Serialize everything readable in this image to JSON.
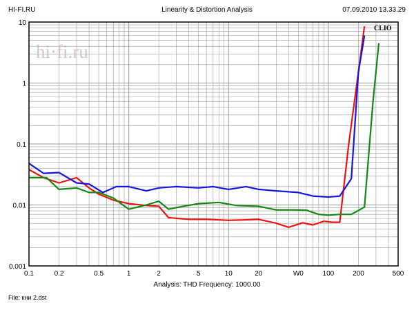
{
  "header": {
    "left": "HI-FI.RU",
    "center": "Linearity & Distortion Analysis",
    "right": "07.09.2010 13.33.29"
  },
  "watermark": "hi·fi.ru",
  "brand": "CLIO",
  "captions": {
    "analysis": "Analysis: THD   Frequency: 1000.00",
    "file": "File: кни 2.dst"
  },
  "colors": {
    "red": "#ee1111",
    "blue": "#1414e0",
    "green": "#118811",
    "grid": "#9a9a9a"
  },
  "chart_data": {
    "type": "line",
    "xscale": "log",
    "yscale": "log",
    "xlim": [
      0.1,
      500
    ],
    "ylim": [
      0.001,
      10
    ],
    "grid": true,
    "x_ticks": [
      "0.1",
      "0.2",
      "0.5",
      "1",
      "2",
      "5",
      "10",
      "20",
      "W0",
      "100",
      "200",
      "500"
    ],
    "y_ticks": [
      "10",
      "1",
      "0.1",
      "0.01",
      "0.001"
    ],
    "series": [
      {
        "color": "#ee1111",
        "x": [
          0.1,
          0.14,
          0.2,
          0.3,
          0.4,
          0.5,
          0.7,
          1,
          1.5,
          2,
          2.5,
          4,
          6,
          10,
          15,
          20,
          30,
          40,
          55,
          70,
          90,
          110,
          130,
          160,
          200,
          230
        ],
        "y": [
          0.038,
          0.028,
          0.023,
          0.028,
          0.019,
          0.015,
          0.012,
          0.0105,
          0.0098,
          0.0095,
          0.0062,
          0.0058,
          0.0058,
          0.0056,
          0.0057,
          0.0058,
          0.005,
          0.0043,
          0.0051,
          0.0047,
          0.0054,
          0.0052,
          0.0052,
          0.1,
          1.5,
          8.5
        ]
      },
      {
        "color": "#1414e0",
        "x": [
          0.1,
          0.14,
          0.2,
          0.3,
          0.4,
          0.55,
          0.75,
          1,
          1.5,
          2,
          3,
          5,
          7,
          10,
          15,
          20,
          30,
          50,
          70,
          100,
          130,
          170,
          200,
          230
        ],
        "y": [
          0.048,
          0.033,
          0.034,
          0.023,
          0.022,
          0.016,
          0.02,
          0.02,
          0.017,
          0.019,
          0.02,
          0.019,
          0.02,
          0.018,
          0.02,
          0.018,
          0.017,
          0.016,
          0.014,
          0.0135,
          0.014,
          0.027,
          1.5,
          6
        ]
      },
      {
        "color": "#118811",
        "x": [
          0.1,
          0.15,
          0.2,
          0.3,
          0.4,
          0.5,
          0.7,
          1,
          1.5,
          2,
          2.5,
          3.5,
          5,
          8,
          12,
          20,
          30,
          45,
          60,
          80,
          100,
          130,
          170,
          230,
          280,
          320
        ],
        "y": [
          0.028,
          0.028,
          0.018,
          0.019,
          0.016,
          0.016,
          0.013,
          0.0085,
          0.01,
          0.0115,
          0.0085,
          0.0095,
          0.0105,
          0.011,
          0.0098,
          0.0095,
          0.0083,
          0.0083,
          0.0082,
          0.007,
          0.0068,
          0.007,
          0.007,
          0.0092,
          0.5,
          4.5
        ]
      }
    ]
  }
}
